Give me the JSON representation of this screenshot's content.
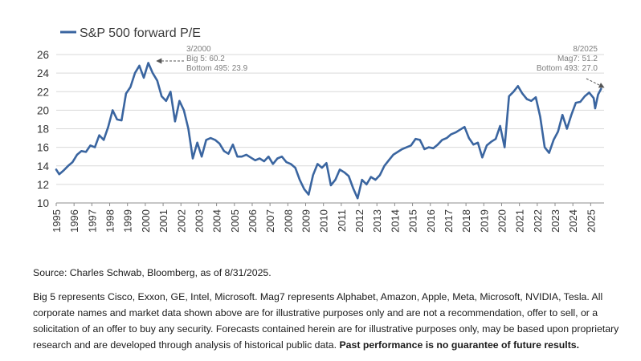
{
  "chart_data": {
    "type": "line",
    "series": [
      {
        "name": "S&P 500 forward P/E",
        "color": "#3a65a0",
        "values": [
          [
            "1995-01",
            13.6
          ],
          [
            "1995-03",
            13.1
          ],
          [
            "1995-06",
            13.5
          ],
          [
            "1995-09",
            14.0
          ],
          [
            "1995-12",
            14.4
          ],
          [
            "1996-03",
            15.2
          ],
          [
            "1996-06",
            15.6
          ],
          [
            "1996-09",
            15.5
          ],
          [
            "1996-12",
            16.2
          ],
          [
            "1997-03",
            16.0
          ],
          [
            "1997-06",
            17.3
          ],
          [
            "1997-09",
            16.8
          ],
          [
            "1997-12",
            18.2
          ],
          [
            "1998-03",
            20.0
          ],
          [
            "1998-06",
            19.0
          ],
          [
            "1998-09",
            18.9
          ],
          [
            "1998-12",
            21.8
          ],
          [
            "1999-03",
            22.5
          ],
          [
            "1999-06",
            24.0
          ],
          [
            "1999-09",
            24.8
          ],
          [
            "1999-12",
            23.5
          ],
          [
            "2000-03",
            25.1
          ],
          [
            "2000-06",
            24.0
          ],
          [
            "2000-09",
            23.2
          ],
          [
            "2000-12",
            21.5
          ],
          [
            "2001-03",
            21.0
          ],
          [
            "2001-06",
            22.0
          ],
          [
            "2001-09",
            18.8
          ],
          [
            "2001-12",
            21.0
          ],
          [
            "2002-03",
            20.0
          ],
          [
            "2002-06",
            18.0
          ],
          [
            "2002-09",
            14.8
          ],
          [
            "2002-12",
            16.5
          ],
          [
            "2003-03",
            15.0
          ],
          [
            "2003-06",
            16.8
          ],
          [
            "2003-09",
            17.0
          ],
          [
            "2003-12",
            16.8
          ],
          [
            "2004-03",
            16.4
          ],
          [
            "2004-06",
            15.6
          ],
          [
            "2004-09",
            15.3
          ],
          [
            "2004-12",
            16.3
          ],
          [
            "2005-03",
            15.0
          ],
          [
            "2005-06",
            15.0
          ],
          [
            "2005-09",
            15.2
          ],
          [
            "2005-12",
            14.9
          ],
          [
            "2006-03",
            14.6
          ],
          [
            "2006-06",
            14.8
          ],
          [
            "2006-09",
            14.5
          ],
          [
            "2006-12",
            15.0
          ],
          [
            "2007-03",
            14.2
          ],
          [
            "2007-06",
            14.8
          ],
          [
            "2007-09",
            15.0
          ],
          [
            "2007-12",
            14.4
          ],
          [
            "2008-03",
            14.2
          ],
          [
            "2008-06",
            13.8
          ],
          [
            "2008-09",
            12.5
          ],
          [
            "2008-12",
            11.5
          ],
          [
            "2009-03",
            10.9
          ],
          [
            "2009-06",
            13.0
          ],
          [
            "2009-09",
            14.2
          ],
          [
            "2009-12",
            13.8
          ],
          [
            "2010-03",
            14.3
          ],
          [
            "2010-06",
            11.9
          ],
          [
            "2010-09",
            12.5
          ],
          [
            "2010-12",
            13.6
          ],
          [
            "2011-03",
            13.3
          ],
          [
            "2011-06",
            12.9
          ],
          [
            "2011-09",
            11.6
          ],
          [
            "2011-12",
            10.5
          ],
          [
            "2012-03",
            12.5
          ],
          [
            "2012-06",
            12.0
          ],
          [
            "2012-09",
            12.8
          ],
          [
            "2012-12",
            12.5
          ],
          [
            "2013-03",
            13.0
          ],
          [
            "2013-06",
            14.0
          ],
          [
            "2013-09",
            14.6
          ],
          [
            "2013-12",
            15.2
          ],
          [
            "2014-03",
            15.5
          ],
          [
            "2014-06",
            15.8
          ],
          [
            "2014-09",
            16.0
          ],
          [
            "2014-12",
            16.2
          ],
          [
            "2015-03",
            16.9
          ],
          [
            "2015-06",
            16.8
          ],
          [
            "2015-09",
            15.8
          ],
          [
            "2015-12",
            16.0
          ],
          [
            "2016-03",
            15.9
          ],
          [
            "2016-06",
            16.3
          ],
          [
            "2016-09",
            16.8
          ],
          [
            "2016-12",
            17.0
          ],
          [
            "2017-03",
            17.4
          ],
          [
            "2017-06",
            17.6
          ],
          [
            "2017-09",
            17.9
          ],
          [
            "2017-12",
            18.2
          ],
          [
            "2018-03",
            17.0
          ],
          [
            "2018-06",
            16.3
          ],
          [
            "2018-09",
            16.5
          ],
          [
            "2018-12",
            14.9
          ],
          [
            "2019-03",
            16.2
          ],
          [
            "2019-06",
            16.6
          ],
          [
            "2019-09",
            16.9
          ],
          [
            "2019-12",
            18.3
          ],
          [
            "2020-03",
            16.0
          ],
          [
            "2020-06",
            21.5
          ],
          [
            "2020-09",
            22.0
          ],
          [
            "2020-12",
            22.6
          ],
          [
            "2021-03",
            21.8
          ],
          [
            "2021-06",
            21.2
          ],
          [
            "2021-09",
            21.0
          ],
          [
            "2021-12",
            21.4
          ],
          [
            "2022-03",
            19.3
          ],
          [
            "2022-06",
            16.0
          ],
          [
            "2022-09",
            15.4
          ],
          [
            "2022-12",
            16.8
          ],
          [
            "2023-03",
            17.7
          ],
          [
            "2023-06",
            19.5
          ],
          [
            "2023-09",
            18.0
          ],
          [
            "2023-12",
            19.5
          ],
          [
            "2024-03",
            20.8
          ],
          [
            "2024-06",
            20.9
          ],
          [
            "2024-09",
            21.5
          ],
          [
            "2024-12",
            21.9
          ],
          [
            "2025-03",
            21.3
          ],
          [
            "2025-04",
            20.2
          ],
          [
            "2025-06",
            21.7
          ],
          [
            "2025-08",
            22.3
          ]
        ]
      }
    ],
    "ylim": [
      10,
      26
    ],
    "yticks": [
      "10",
      "12",
      "14",
      "16",
      "18",
      "20",
      "22",
      "24",
      "26"
    ],
    "xticks": [
      "1995",
      "1996",
      "1997",
      "1998",
      "1999",
      "2000",
      "2001",
      "2002",
      "2003",
      "2004",
      "2005",
      "2006",
      "2007",
      "2008",
      "2009",
      "2010",
      "2011",
      "2012",
      "2013",
      "2014",
      "2015",
      "2016",
      "2017",
      "2018",
      "2019",
      "2020",
      "2021",
      "2022",
      "2023",
      "2024",
      "2025"
    ],
    "xlim": [
      1995.0,
      2025.75
    ],
    "grid": "horizontal",
    "legend": "top-left",
    "annotations": [
      {
        "target": [
          "2000-03",
          25.1
        ],
        "lines": [
          "3/2000",
          "Big 5:  60.2",
          "Bottom 495: 23.9"
        ],
        "color": "#7f7f7f"
      },
      {
        "target": [
          "2025-08",
          22.3
        ],
        "lines": [
          "8/2025",
          "Mag7:  51.2",
          "Bottom 493: 27.0"
        ],
        "color": "#7f7f7f"
      }
    ]
  },
  "notes": {
    "source": "Source: Charles Schwab, Bloomberg, as of 8/31/2025.",
    "disclaimer": "Big 5 represents Cisco, Exxon, GE, Intel, Microsoft. Mag7 represents Alphabet, Amazon, Apple, Meta, Microsoft, NVIDIA, Tesla. All corporate names and market data shown above are for illustrative purposes only and are not a recommendation, offer to sell, or a solicitation of an offer to buy any security. Forecasts contained herein are for illustrative purposes only, may be based upon proprietary research and are developed through analysis of historical public data.",
    "disclaimer_bold": "Past performance is no guarantee of future results."
  }
}
